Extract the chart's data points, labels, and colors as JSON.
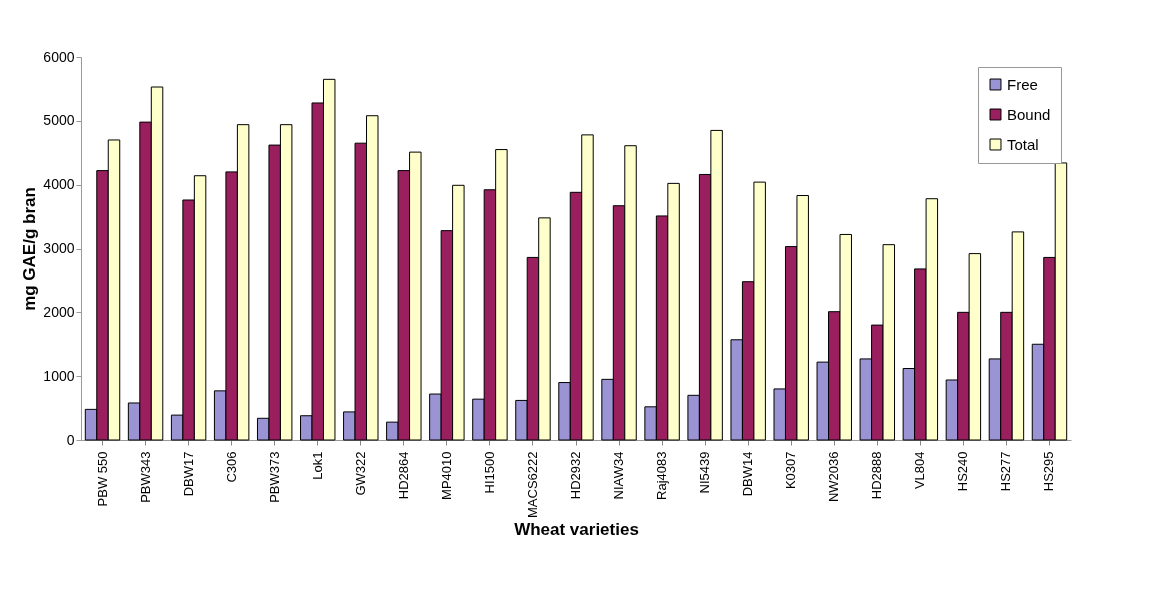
{
  "chart_data": {
    "type": "bar",
    "xlabel": "Wheat varieties",
    "ylabel": "mg GAE/g bran",
    "categories": [
      "PBW 550",
      "PBW343",
      "DBW17",
      "C306",
      "PBW373",
      "Lok1",
      "GW322",
      "HD2864",
      "MP4010",
      "HI1500",
      "MACS6222",
      "HD2932",
      "NIAW34",
      "Raj4083",
      "NI5439",
      "DBW14",
      "K0307",
      "NW2036",
      "HD2888",
      "VL804",
      "HS240",
      "HS277",
      "HS295"
    ],
    "series": [
      {
        "name": "Free",
        "color": "#9a94d4",
        "values": [
          480,
          580,
          390,
          770,
          340,
          380,
          440,
          280,
          720,
          640,
          620,
          900,
          950,
          520,
          700,
          1570,
          800,
          1220,
          1270,
          1120,
          940,
          1270,
          1500
        ]
      },
      {
        "name": "Bound",
        "color": "#991f5e",
        "values": [
          4220,
          4980,
          3760,
          4200,
          4620,
          5280,
          4650,
          4220,
          3280,
          3920,
          2860,
          3880,
          3670,
          3510,
          4160,
          2480,
          3030,
          2010,
          1800,
          2680,
          2000,
          2000,
          2860
        ]
      },
      {
        "name": "Total",
        "color": "#ffffcc",
        "values": [
          4700,
          5530,
          4140,
          4940,
          4940,
          5650,
          5080,
          4510,
          3990,
          4550,
          3480,
          4780,
          4610,
          4020,
          4850,
          4040,
          3830,
          3220,
          3060,
          3780,
          2920,
          3260,
          4340
        ]
      }
    ],
    "ylim": [
      0,
      6000
    ],
    "yticks": [
      0,
      1000,
      2000,
      3000,
      4000,
      5000,
      6000
    ],
    "grid": false,
    "legend": "top right"
  }
}
